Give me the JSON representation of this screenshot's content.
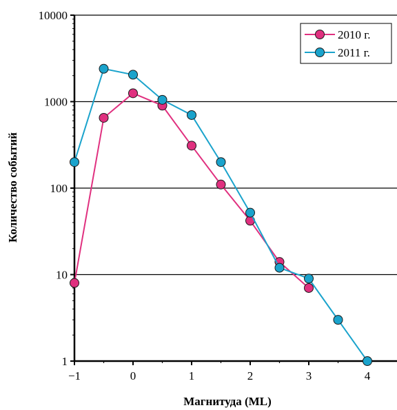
{
  "chart_data": {
    "type": "line",
    "title": "",
    "xlabel": "Магнитуда (ML)",
    "ylabel": "Количество событий",
    "xlim": [
      -1,
      4.5
    ],
    "ylim": [
      1,
      10000
    ],
    "yscale": "log",
    "x_ticks": [
      -1,
      0,
      1,
      2,
      3,
      4
    ],
    "x_tick_labels": [
      "−1",
      "0",
      "1",
      "2",
      "3",
      "4"
    ],
    "y_ticks": [
      1,
      10,
      100,
      1000,
      10000
    ],
    "y_tick_labels": [
      "1",
      "10",
      "100",
      "1000",
      "10000"
    ],
    "grid": "horizontal",
    "legend_position": "top-right",
    "series": [
      {
        "name": "2010 г.",
        "color": "#e0307f",
        "x": [
          -1,
          -0.5,
          0,
          0.5,
          1,
          1.5,
          2,
          2.5,
          3
        ],
        "y": [
          8,
          650,
          1250,
          900,
          310,
          110,
          42,
          14,
          7
        ]
      },
      {
        "name": "2011 г.",
        "color": "#1aa3cc",
        "x": [
          -1,
          -0.5,
          0,
          0.5,
          1,
          1.5,
          2,
          2.5,
          3,
          3.5,
          4
        ],
        "y": [
          200,
          2400,
          2050,
          1050,
          700,
          200,
          52,
          12,
          9,
          3,
          1
        ]
      }
    ]
  }
}
